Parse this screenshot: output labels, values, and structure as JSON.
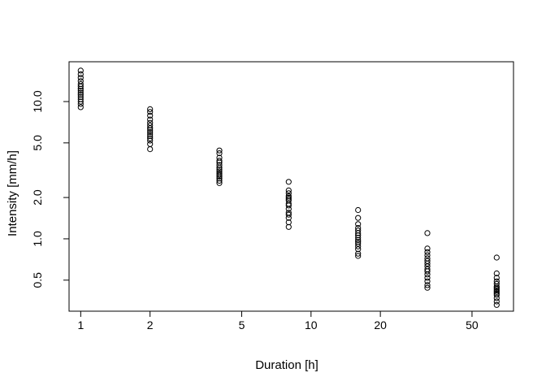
{
  "figure": {
    "background": "#ffffff",
    "axis_color": "#000000"
  },
  "chart_data": {
    "type": "scatter",
    "title": "",
    "xlabel": "Duration [h]",
    "ylabel": "Intensity [mm/h]",
    "x_scale": "log10",
    "y_scale": "log10",
    "xlim": [
      0.89,
      75.7
    ],
    "ylim": [
      0.297,
      19.5
    ],
    "grid": false,
    "legend": "none",
    "marker": {
      "shape": "open-circle",
      "stroke": "#000000",
      "fill": "none",
      "radius_px": 3.1
    },
    "x_ticks": {
      "values": [
        1,
        2,
        5,
        10,
        20,
        50
      ],
      "labels": [
        "1",
        "2",
        "5",
        "10",
        "20",
        "50"
      ]
    },
    "y_ticks": {
      "values": [
        10,
        5,
        2,
        1,
        0.5
      ],
      "labels": [
        "10.0",
        "5.0",
        "2.0",
        "1.0",
        "0.5"
      ]
    },
    "groups": [
      {
        "duration": 1,
        "intensities": [
          16.8,
          15.8,
          14.9,
          14.1,
          13.4,
          12.9,
          12.4,
          12.0,
          11.6,
          11.2,
          10.8,
          10.4,
          10.0,
          9.6,
          9.1
        ]
      },
      {
        "duration": 2,
        "intensities": [
          8.8,
          8.4,
          7.9,
          7.4,
          7.0,
          6.7,
          6.4,
          6.2,
          6.0,
          5.8,
          5.6,
          5.4,
          5.2,
          4.9,
          4.5
        ]
      },
      {
        "duration": 4,
        "intensities": [
          4.4,
          4.2,
          3.9,
          3.7,
          3.6,
          3.45,
          3.3,
          3.2,
          3.1,
          3.0,
          2.92,
          2.84,
          2.75,
          2.65,
          2.55
        ]
      },
      {
        "duration": 8,
        "intensities": [
          2.6,
          2.25,
          2.15,
          2.05,
          2.0,
          1.95,
          1.9,
          1.8,
          1.75,
          1.65,
          1.55,
          1.5,
          1.42,
          1.32,
          1.22
        ]
      },
      {
        "duration": 16,
        "intensities": [
          1.62,
          1.42,
          1.28,
          1.2,
          1.15,
          1.1,
          1.06,
          1.02,
          0.98,
          0.95,
          0.92,
          0.88,
          0.84,
          0.78,
          0.75
        ]
      },
      {
        "duration": 32,
        "intensities": [
          1.1,
          0.85,
          0.8,
          0.76,
          0.72,
          0.69,
          0.66,
          0.63,
          0.6,
          0.58,
          0.55,
          0.52,
          0.49,
          0.46,
          0.44
        ]
      },
      {
        "duration": 64,
        "intensities": [
          0.73,
          0.56,
          0.52,
          0.49,
          0.47,
          0.45,
          0.44,
          0.43,
          0.42,
          0.41,
          0.4,
          0.39,
          0.37,
          0.35,
          0.33
        ]
      }
    ]
  }
}
